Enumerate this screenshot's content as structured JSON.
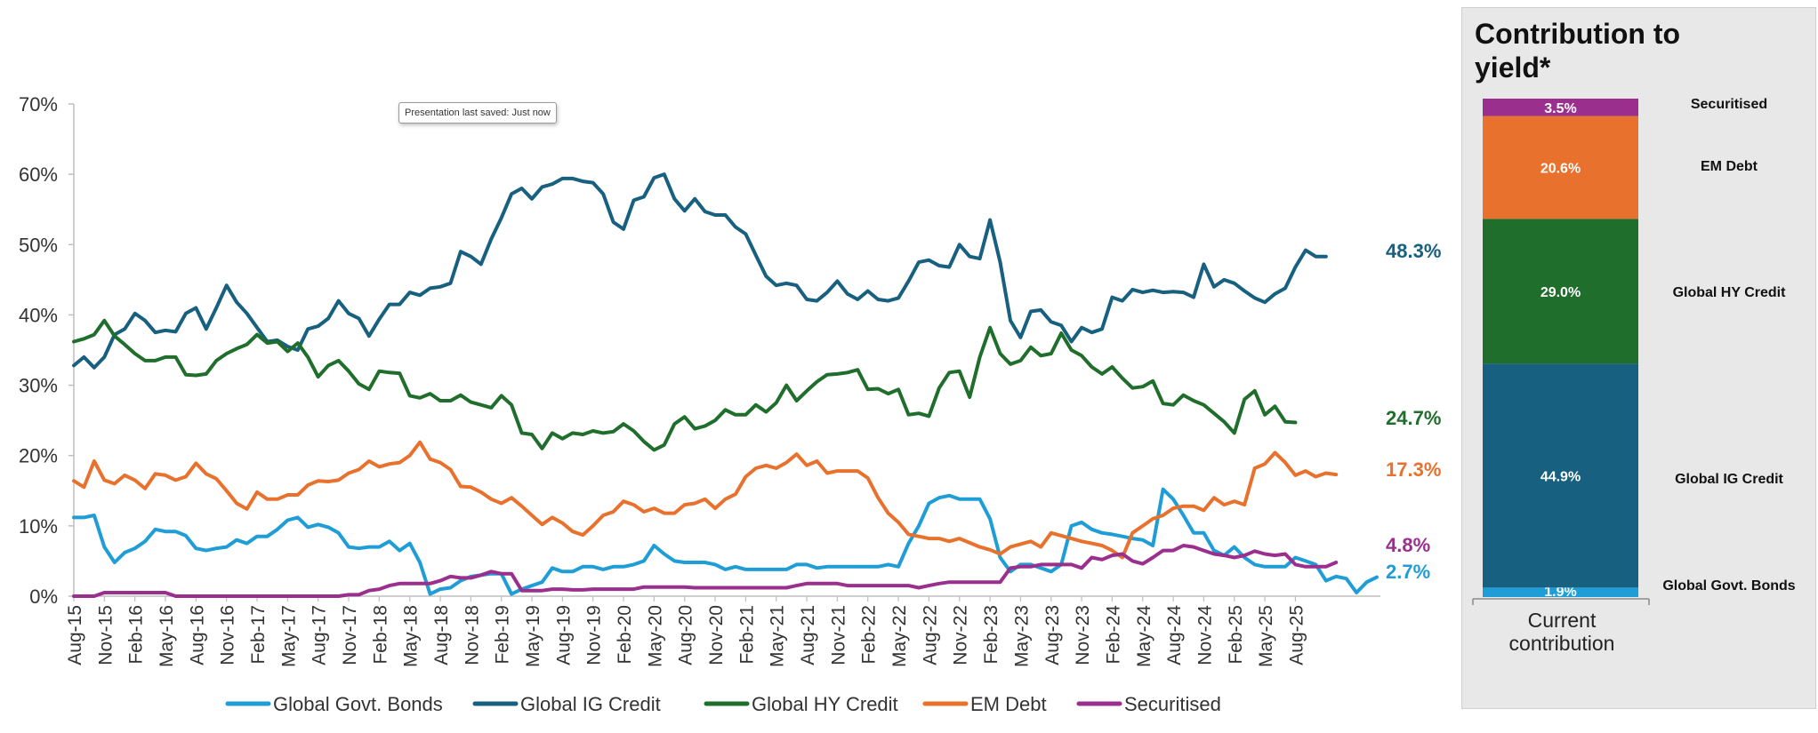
{
  "tooltip": "Presentation last saved: Just now",
  "chart_data": [
    {
      "type": "line",
      "title": "",
      "xlabel": "",
      "ylabel": "",
      "ylim": [
        0,
        70
      ],
      "yticks": [
        "0%",
        "10%",
        "20%",
        "30%",
        "40%",
        "50%",
        "60%",
        "70%"
      ],
      "x_tick_labels": [
        "Aug-15",
        "Nov-15",
        "Feb-16",
        "May-16",
        "Aug-16",
        "Nov-16",
        "Feb-17",
        "May-17",
        "Aug-17",
        "Nov-17",
        "Feb-18",
        "May-18",
        "Aug-18",
        "Nov-18",
        "Feb-19",
        "May-19",
        "Aug-19",
        "Nov-19",
        "Feb-20",
        "May-20",
        "Aug-20",
        "Nov-20",
        "Feb-21",
        "May-21",
        "Aug-21",
        "Nov-21",
        "Feb-22",
        "May-22",
        "Aug-22",
        "Nov-22",
        "Feb-23",
        "May-23",
        "Aug-23",
        "Nov-23",
        "Feb-24",
        "May-24",
        "Aug-24",
        "Nov-24",
        "Feb-25",
        "May-25",
        "Aug-25"
      ],
      "legend_position": "bottom",
      "series": [
        {
          "name": "Global Govt. Bonds",
          "color": "#1f9dd6",
          "end_label": "2.7%",
          "values": [
            11.2,
            11.2,
            11.5,
            7.0,
            4.8,
            6.2,
            6.8,
            7.8,
            9.5,
            9.2,
            9.2,
            8.6,
            6.8,
            6.5,
            6.8,
            7.0,
            8.0,
            7.5,
            8.5,
            8.5,
            9.5,
            10.8,
            11.2,
            9.8,
            10.2,
            9.8,
            9.0,
            7.0,
            6.8,
            7.0,
            7.0,
            7.8,
            6.5,
            7.5,
            4.8,
            0.3,
            1.0,
            1.2,
            2.2,
            2.8,
            3.0,
            3.2,
            3.2,
            0.3,
            1.0,
            1.5,
            2.0,
            4.0,
            3.5,
            3.5,
            4.2,
            4.2,
            3.8,
            4.2,
            4.2,
            4.5,
            5.0,
            7.2,
            6.0,
            5.0,
            4.8,
            4.8,
            4.8,
            4.5,
            3.8,
            4.2,
            3.8,
            3.8,
            3.8,
            3.8,
            3.8,
            4.5,
            4.5,
            4.0,
            4.2,
            4.2,
            4.2,
            4.2,
            4.2,
            4.2,
            4.5,
            4.2,
            7.5,
            10.0,
            13.2,
            14.0,
            14.3,
            13.8,
            13.8,
            13.8,
            11.0,
            5.5,
            3.5,
            4.5,
            4.5,
            4.0,
            3.5,
            4.5,
            10.0,
            10.5,
            9.5,
            9.0,
            8.8,
            8.5,
            8.2,
            8.0,
            7.2,
            15.2,
            13.8,
            11.5,
            9.0,
            9.0,
            6.5,
            5.8,
            7.0,
            5.5,
            4.5,
            4.2,
            4.2,
            4.2,
            5.5,
            5.0,
            4.5,
            2.2,
            2.8,
            2.5,
            0.5,
            2.0,
            2.7
          ]
        },
        {
          "name": "Global IG Credit",
          "color": "#17607f",
          "end_label": "48.3%",
          "values": [
            32.8,
            34.0,
            32.5,
            34.0,
            37.2,
            38.0,
            40.2,
            39.2,
            37.5,
            37.8,
            37.6,
            40.2,
            41.0,
            38.0,
            41.0,
            44.2,
            41.8,
            40.2,
            38.2,
            36.2,
            36.4,
            35.5,
            35.0,
            38.0,
            38.4,
            39.5,
            42.0,
            40.2,
            39.5,
            37.0,
            39.4,
            41.5,
            41.5,
            43.2,
            42.8,
            43.8,
            44.0,
            44.5,
            49.0,
            48.3,
            47.2,
            50.8,
            53.8,
            57.2,
            58.0,
            56.5,
            58.2,
            58.6,
            59.4,
            59.4,
            59.0,
            58.8,
            57.2,
            53.2,
            52.2,
            56.3,
            56.8,
            59.5,
            60.0,
            56.5,
            54.8,
            56.5,
            54.7,
            54.2,
            54.2,
            52.5,
            51.5,
            48.5,
            45.5,
            44.2,
            44.5,
            44.2,
            42.2,
            42.0,
            43.2,
            44.8,
            43.0,
            42.2,
            43.4,
            42.2,
            42.0,
            42.4,
            44.8,
            47.5,
            47.8,
            47.0,
            46.8,
            50.0,
            48.3,
            48.0,
            53.5,
            47.5,
            39.2,
            36.8,
            40.5,
            40.7,
            39.0,
            38.5,
            36.2,
            38.2,
            37.5,
            38.0,
            42.5,
            42.0,
            43.6,
            43.2,
            43.5,
            43.2,
            43.3,
            43.2,
            42.5,
            47.2,
            44.0,
            45.0,
            44.5,
            43.4,
            42.4,
            41.8,
            43.0,
            43.8,
            46.8,
            49.2,
            48.3,
            48.3
          ]
        },
        {
          "name": "Global HY Credit",
          "color": "#1f6e2c",
          "end_label": "24.7%",
          "values": [
            36.2,
            36.6,
            37.2,
            39.2,
            37.0,
            35.8,
            34.5,
            33.5,
            33.5,
            34.0,
            34.0,
            31.5,
            31.4,
            31.6,
            33.5,
            34.5,
            35.2,
            35.8,
            37.2,
            36.0,
            36.2,
            34.8,
            36.0,
            34.0,
            31.2,
            32.8,
            33.5,
            32.0,
            30.2,
            29.4,
            32.0,
            31.8,
            31.7,
            28.5,
            28.2,
            28.8,
            27.8,
            27.8,
            28.6,
            27.6,
            27.2,
            26.8,
            28.5,
            27.2,
            23.2,
            23.0,
            21.0,
            23.2,
            22.4,
            23.2,
            23.0,
            23.5,
            23.2,
            23.4,
            24.5,
            23.5,
            22.0,
            20.8,
            21.5,
            24.5,
            25.5,
            23.8,
            24.2,
            25.0,
            26.5,
            25.8,
            25.8,
            27.2,
            26.2,
            27.5,
            30.0,
            27.8,
            29.2,
            30.5,
            31.5,
            31.6,
            31.8,
            32.2,
            29.4,
            29.5,
            28.8,
            29.4,
            25.8,
            26.0,
            25.6,
            29.6,
            31.8,
            32.0,
            28.3,
            34.0,
            38.2,
            34.5,
            33.0,
            33.5,
            35.4,
            34.2,
            34.5,
            37.4,
            35.0,
            34.2,
            32.6,
            31.6,
            32.6,
            31.0,
            29.6,
            29.8,
            30.6,
            27.4,
            27.2,
            28.6,
            27.8,
            27.2,
            26.0,
            24.8,
            23.2,
            28.0,
            29.2,
            25.8,
            27.0,
            24.8,
            24.7
          ]
        },
        {
          "name": "EM Debt",
          "color": "#e8722d",
          "end_label": "17.3%",
          "values": [
            16.4,
            15.5,
            19.2,
            16.5,
            16.0,
            17.2,
            16.5,
            15.3,
            17.4,
            17.2,
            16.5,
            17.0,
            18.9,
            17.4,
            16.7,
            15.0,
            13.2,
            12.4,
            14.8,
            13.8,
            13.8,
            14.4,
            14.4,
            15.8,
            16.4,
            16.3,
            16.5,
            17.5,
            18.0,
            19.2,
            18.4,
            18.8,
            19.0,
            20.0,
            21.9,
            19.5,
            19.0,
            18.0,
            15.6,
            15.5,
            14.8,
            13.8,
            13.2,
            14.0,
            12.8,
            11.5,
            10.2,
            11.2,
            10.4,
            9.2,
            8.7,
            10.0,
            11.5,
            12.0,
            13.5,
            13.0,
            12.0,
            12.5,
            11.8,
            11.8,
            13.0,
            13.2,
            13.8,
            12.5,
            13.8,
            14.5,
            17.0,
            18.2,
            18.6,
            18.2,
            19.0,
            20.2,
            18.6,
            19.2,
            17.5,
            17.8,
            17.8,
            17.8,
            16.8,
            14.0,
            11.8,
            10.5,
            8.8,
            8.5,
            8.2,
            8.2,
            7.8,
            8.2,
            7.6,
            7.0,
            6.6,
            6.0,
            7.0,
            7.4,
            7.8,
            7.0,
            9.0,
            8.6,
            8.2,
            7.8,
            7.5,
            7.2,
            6.5,
            5.5,
            9.0,
            10.0,
            11.0,
            11.5,
            12.5,
            12.8,
            12.8,
            12.2,
            14.0,
            13.0,
            13.5,
            13.0,
            18.2,
            18.8,
            20.4,
            19.0,
            17.2,
            17.8,
            17.0,
            17.5,
            17.3
          ]
        },
        {
          "name": "Securitised",
          "color": "#9b2f8e",
          "end_label": "4.8%",
          "values": [
            0,
            0,
            0,
            0.5,
            0.5,
            0.5,
            0.5,
            0.5,
            0.5,
            0.5,
            0,
            0,
            0,
            0,
            0,
            0,
            0,
            0,
            0,
            0,
            0,
            0,
            0,
            0,
            0,
            0,
            0,
            0.2,
            0.2,
            0.8,
            1.0,
            1.5,
            1.8,
            1.8,
            1.8,
            1.8,
            2.2,
            2.8,
            2.6,
            2.6,
            3.0,
            3.5,
            3.2,
            3.2,
            0.8,
            0.8,
            0.8,
            1.0,
            1.0,
            0.9,
            0.9,
            1.0,
            1.0,
            1.0,
            1.0,
            1.0,
            1.3,
            1.3,
            1.3,
            1.3,
            1.3,
            1.2,
            1.2,
            1.2,
            1.2,
            1.2,
            1.2,
            1.2,
            1.2,
            1.2,
            1.2,
            1.5,
            1.8,
            1.8,
            1.8,
            1.8,
            1.5,
            1.5,
            1.5,
            1.5,
            1.5,
            1.5,
            1.5,
            1.2,
            1.5,
            1.8,
            2.0,
            2.0,
            2.0,
            2.0,
            2.0,
            2.0,
            4.0,
            4.2,
            4.2,
            4.5,
            4.5,
            4.5,
            4.5,
            4.0,
            5.5,
            5.2,
            5.8,
            6.0,
            5.0,
            4.6,
            5.5,
            6.5,
            6.5,
            7.2,
            7.0,
            6.5,
            6.0,
            5.8,
            5.5,
            5.8,
            6.4,
            6.0,
            5.8,
            6.0,
            4.5,
            4.2,
            4.2,
            4.2,
            4.8
          ]
        }
      ]
    },
    {
      "type": "bar",
      "stacked": true,
      "title": "Contribution to yield*",
      "categories": [
        "Current contribution"
      ],
      "series": [
        {
          "name": "Global Govt. Bonds",
          "value": 1.9,
          "label": "1.9%",
          "color": "#1f9dd6"
        },
        {
          "name": "Global IG Credit",
          "value": 44.9,
          "label": "44.9%",
          "color": "#17607f"
        },
        {
          "name": "Global HY Credit",
          "value": 29.0,
          "label": "29.0%",
          "color": "#1f6e2c"
        },
        {
          "name": "EM Debt",
          "value": 20.6,
          "label": "20.6%",
          "color": "#e8722d"
        },
        {
          "name": "Securitised",
          "value": 3.5,
          "label": "3.5%",
          "color": "#9b2f8e"
        }
      ]
    }
  ]
}
